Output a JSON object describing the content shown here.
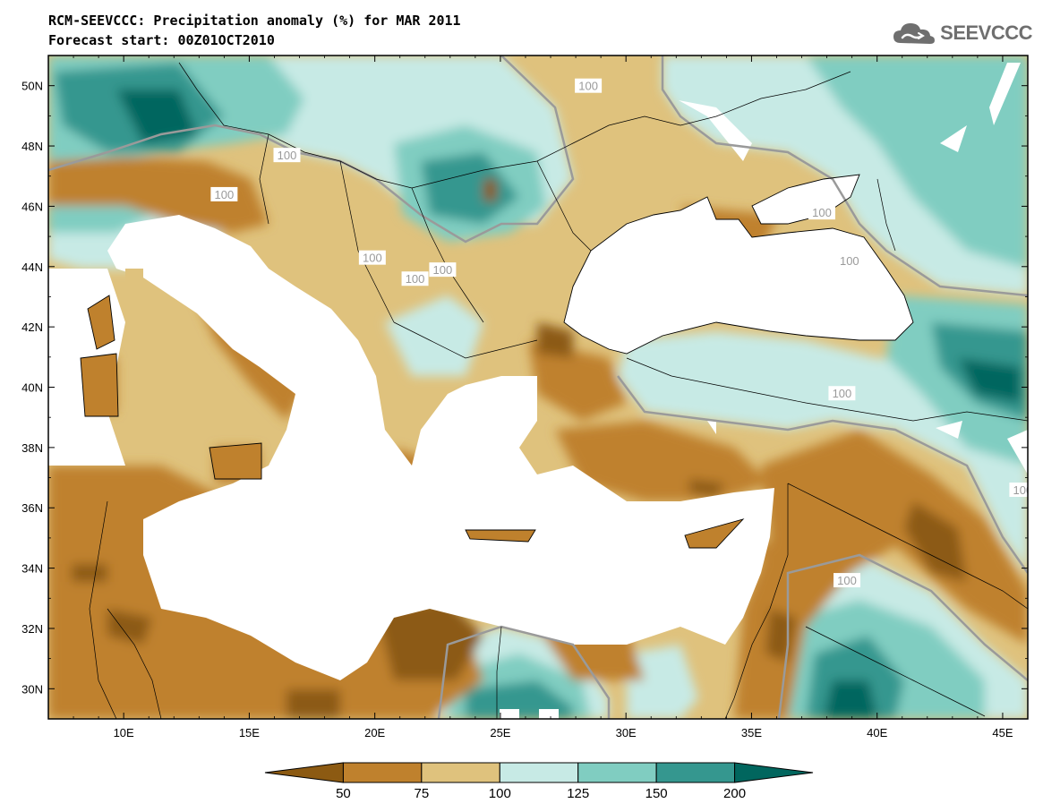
{
  "header": {
    "title_line1": "RCM-SEEVCCC: Precipitation anomaly (%) for MAR 2011",
    "title_line2": "Forecast start: 00Z01OCT2010",
    "logo_text": "SEEVCCC"
  },
  "map": {
    "region": "Eastern Mediterranean / South-East Europe",
    "lon_range": [
      7,
      46
    ],
    "lat_range": [
      29,
      51
    ],
    "lon_ticks": [
      {
        "value": 10,
        "label": "10E"
      },
      {
        "value": 15,
        "label": "15E"
      },
      {
        "value": 20,
        "label": "20E"
      },
      {
        "value": 25,
        "label": "25E"
      },
      {
        "value": 30,
        "label": "30E"
      },
      {
        "value": 35,
        "label": "35E"
      },
      {
        "value": 40,
        "label": "40E"
      },
      {
        "value": 45,
        "label": "45E"
      }
    ],
    "lat_ticks": [
      {
        "value": 30,
        "label": "30N"
      },
      {
        "value": 32,
        "label": "32N"
      },
      {
        "value": 34,
        "label": "34N"
      },
      {
        "value": 36,
        "label": "36N"
      },
      {
        "value": 38,
        "label": "38N"
      },
      {
        "value": 40,
        "label": "40N"
      },
      {
        "value": 42,
        "label": "42N"
      },
      {
        "value": 44,
        "label": "44N"
      },
      {
        "value": 46,
        "label": "46N"
      },
      {
        "value": 48,
        "label": "48N"
      },
      {
        "value": 50,
        "label": "50N"
      }
    ],
    "contour_label_text": "100",
    "contour_labels_lonlat": [
      [
        28.5,
        50.0
      ],
      [
        16.5,
        47.7
      ],
      [
        14.0,
        46.4
      ],
      [
        19.9,
        44.3
      ],
      [
        21.6,
        43.6
      ],
      [
        22.7,
        43.9
      ],
      [
        37.8,
        45.8
      ],
      [
        38.9,
        44.2
      ],
      [
        38.6,
        39.8
      ],
      [
        45.8,
        36.6
      ],
      [
        38.8,
        33.6
      ]
    ]
  },
  "legend": {
    "tick_labels": [
      "50",
      "75",
      "100",
      "125",
      "150",
      "200"
    ],
    "colors": [
      "#8c5a12",
      "#bf812d",
      "#dfc27d",
      "#c7eae5",
      "#80cdc1",
      "#35978f",
      "#01665e"
    ]
  },
  "colors": {
    "dry_extreme": "#8c5a12",
    "dry_strong": "#bf812d",
    "dry_moderate": "#dfc27d",
    "wet_moderate": "#c7eae5",
    "wet_strong": "#80cdc1",
    "wet_high": "#35978f",
    "wet_extreme": "#01665e",
    "sea": "#ffffff",
    "contour_100": "#9a9a9a"
  }
}
